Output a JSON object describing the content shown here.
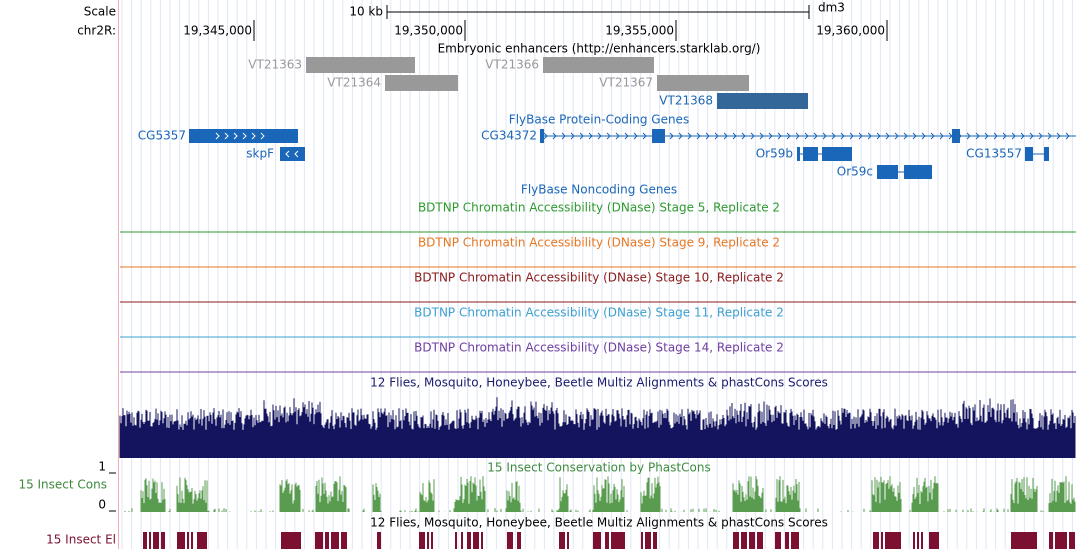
{
  "ruler": {
    "scale_label": "Scale",
    "chrom_label": "chr2R:",
    "scale_bar_label": "10 kb",
    "assembly": "dm3",
    "ticks": [
      "19,345,000",
      "19,350,000",
      "19,355,000",
      "19,360,000"
    ]
  },
  "enhancers": {
    "title": "Embryonic enhancers (http://enhancers.starklab.org/)",
    "features": [
      "VT21363",
      "VT21364",
      "VT21366",
      "VT21367",
      "VT21368"
    ]
  },
  "genes": {
    "title": "FlyBase Protein-Coding Genes",
    "features": [
      "CG5357",
      "skpF",
      "CG34372",
      "Or59b",
      "Or59c",
      "CG13557"
    ]
  },
  "noncoding": {
    "title": "FlyBase Noncoding Genes"
  },
  "dnase": [
    "BDTNP Chromatin Accessibility (DNase) Stage 5, Replicate 2",
    "BDTNP Chromatin Accessibility (DNase) Stage 9, Replicate 2",
    "BDTNP Chromatin Accessibility (DNase) Stage 10, Replicate 2",
    "BDTNP Chromatin Accessibility (DNase) Stage 11, Replicate 2",
    "BDTNP Chromatin Accessibility (DNase) Stage 14, Replicate 2"
  ],
  "multiz": {
    "title": "12 Flies, Mosquito, Honeybee, Beetle Multiz Alignments & phastCons Scores"
  },
  "phastcons": {
    "side_label": "15 Insect Cons",
    "max_label": "1",
    "min_label": "0",
    "title": "15 Insect Conservation by PhastCons"
  },
  "elements": {
    "side_label": "15 Insect El",
    "title": "12 Flies, Mosquito, Honeybee, Beetle Multiz Alignments & phastCons Scores"
  }
}
